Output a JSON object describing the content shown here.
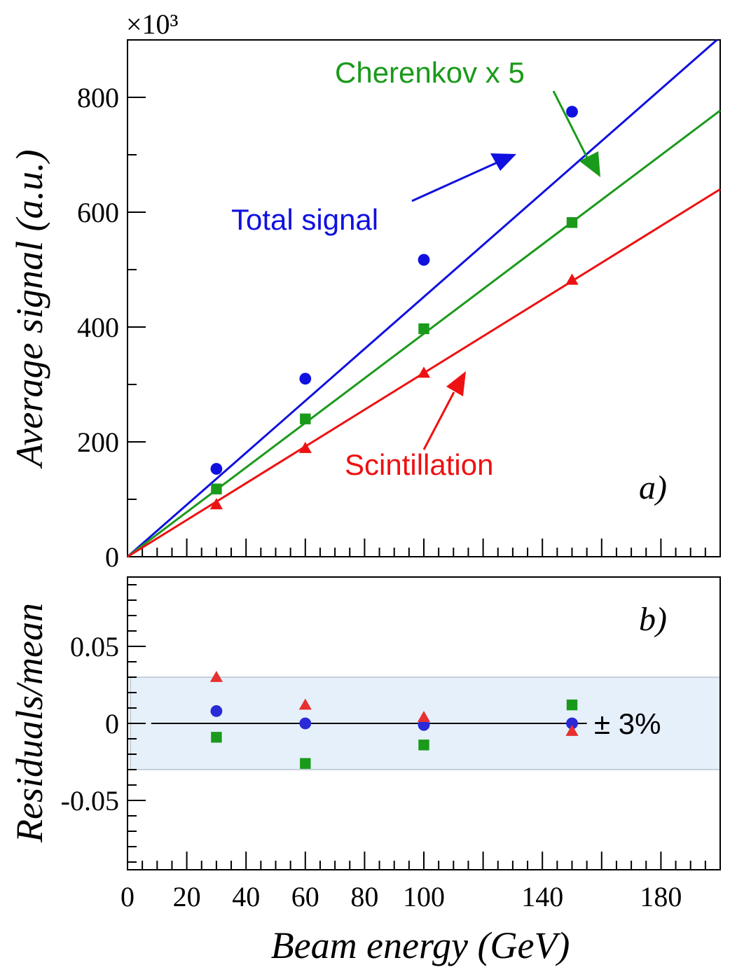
{
  "chart_data": [
    {
      "panel": "a)",
      "type": "line",
      "ylabel": "Average signal (a.u.)",
      "y_exponent_label": "×10³",
      "y_multiplier": 1000,
      "xlim": [
        0,
        200
      ],
      "ylim": [
        0,
        900
      ],
      "yticks": [
        0,
        200,
        400,
        600,
        800
      ],
      "series": [
        {
          "name": "Total signal",
          "color": "#1010e0",
          "marker": "circle",
          "x": [
            30,
            60,
            100,
            150
          ],
          "values": [
            153,
            310,
            517,
            775
          ],
          "line": [
            [
              0,
              0
            ],
            [
              200,
              905
            ]
          ]
        },
        {
          "name": "Cherenkov x 5",
          "color": "#1a9a1a",
          "marker": "square",
          "x": [
            30,
            60,
            100,
            150
          ],
          "values": [
            118,
            240,
            397,
            582
          ],
          "line": [
            [
              0,
              0
            ],
            [
              200,
              777
            ]
          ]
        },
        {
          "name": "Scintillation",
          "color": "#ee1111",
          "marker": "triangle",
          "x": [
            30,
            60,
            100,
            150
          ],
          "values": [
            91,
            189,
            320,
            482
          ],
          "line": [
            [
              0,
              0
            ],
            [
              200,
              640
            ]
          ]
        }
      ],
      "annotations": [
        {
          "text": "Total signal",
          "color": "#1010e0"
        },
        {
          "text": "Cherenkov x 5",
          "color": "#1a9a1a"
        },
        {
          "text": "Scintillation",
          "color": "#ee1111"
        }
      ]
    },
    {
      "panel": "b)",
      "type": "scatter",
      "ylabel": "Residuals/mean",
      "xlabel": "Beam energy (GeV)",
      "xlim": [
        0,
        200
      ],
      "ylim": [
        -0.095,
        0.095
      ],
      "yticks": [
        -0.05,
        0,
        0.05
      ],
      "ytick_labels": [
        "-0.05",
        "0",
        "0.05"
      ],
      "xticks": [
        0,
        20,
        40,
        60,
        80,
        100,
        140,
        180
      ],
      "band": {
        "low": -0.03,
        "high": 0.03,
        "label": "± 3%",
        "color": "#e6f0fa"
      },
      "series": [
        {
          "name": "Total signal",
          "color": "#2a2ad8",
          "marker": "circle",
          "x": [
            30,
            60,
            100,
            150
          ],
          "values": [
            0.008,
            0.0,
            -0.001,
            0.0
          ]
        },
        {
          "name": "Cherenkov x 5",
          "color": "#1a9a1a",
          "marker": "square",
          "x": [
            30,
            60,
            100,
            150
          ],
          "values": [
            -0.009,
            -0.026,
            -0.014,
            0.012
          ]
        },
        {
          "name": "Scintillation",
          "color": "#e83030",
          "marker": "triangle",
          "x": [
            30,
            60,
            100,
            150
          ],
          "values": [
            0.03,
            0.012,
            0.004,
            -0.005
          ]
        }
      ]
    }
  ]
}
